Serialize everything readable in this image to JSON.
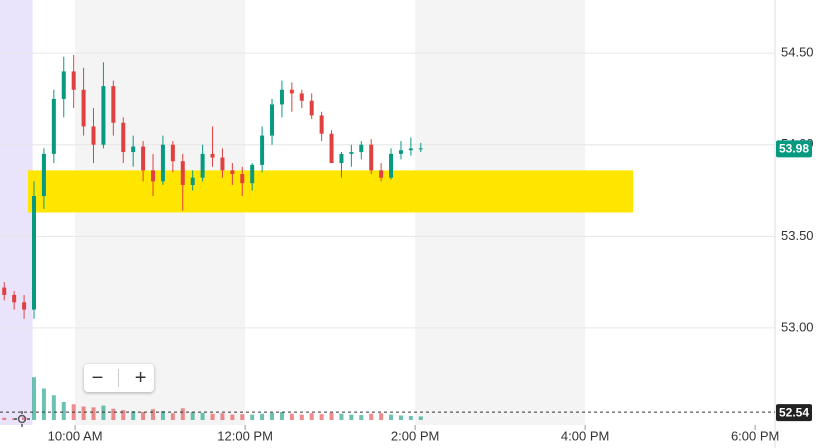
{
  "chart_data": {
    "type": "candlestick",
    "xlim": [
      547,
      1094
    ],
    "ylim": [
      52.47,
      54.79
    ],
    "xticks": [
      {
        "value": 600,
        "label": "10:00 AM"
      },
      {
        "value": 720,
        "label": "12:00 PM"
      },
      {
        "value": 840,
        "label": "2:00 PM"
      },
      {
        "value": 960,
        "label": "4:00 PM"
      },
      {
        "value": 1080,
        "label": "6:00 PM"
      }
    ],
    "yticks": [
      {
        "value": 53,
        "label": "53.00"
      },
      {
        "value": 53.5,
        "label": "53.50"
      },
      {
        "value": 54,
        "label": "54.00"
      },
      {
        "value": 54.5,
        "label": "54.50"
      }
    ],
    "grid": true,
    "up_color": "#089981",
    "down_color": "#e0403f",
    "premarket": [
      547,
      570
    ],
    "shaded": [
      [
        600,
        720
      ],
      [
        840,
        960
      ]
    ],
    "x": [
      550,
      557,
      564,
      571,
      578,
      585,
      592,
      599,
      606,
      613,
      620,
      627,
      634,
      641,
      648,
      655,
      662,
      669,
      676,
      683,
      690,
      697,
      704,
      711,
      718,
      725,
      732,
      739,
      746,
      753,
      760,
      767,
      774,
      781,
      788,
      795,
      802,
      809,
      816,
      823,
      830,
      837,
      844
    ],
    "open": [
      53.22,
      53.18,
      53.14,
      53.1,
      53.72,
      53.95,
      54.25,
      54.4,
      54.3,
      54.1,
      54.0,
      54.32,
      54.12,
      53.96,
      53.99,
      53.86,
      53.8,
      54.0,
      53.91,
      53.78,
      53.82,
      53.95,
      53.93,
      53.86,
      53.84,
      53.79,
      53.89,
      54.05,
      54.22,
      54.3,
      54.28,
      54.24,
      54.16,
      54.06,
      53.9,
      53.95,
      53.96,
      54.0,
      53.86,
      53.82,
      53.95,
      53.97,
      53.98
    ],
    "high": [
      53.25,
      53.2,
      53.18,
      53.8,
      53.98,
      54.3,
      54.48,
      54.49,
      54.42,
      54.2,
      54.45,
      54.35,
      54.15,
      54.05,
      54.02,
      53.95,
      54.05,
      54.02,
      53.95,
      53.86,
      54.0,
      54.1,
      53.98,
      53.9,
      53.88,
      53.9,
      54.1,
      54.25,
      54.35,
      54.34,
      54.3,
      54.28,
      54.18,
      54.08,
      53.96,
      54.0,
      54.02,
      54.03,
      53.9,
      53.98,
      54.02,
      54.04,
      54.01
    ],
    "low": [
      53.15,
      53.1,
      53.05,
      53.05,
      53.65,
      53.9,
      54.15,
      54.2,
      54.05,
      53.9,
      53.98,
      54.05,
      53.9,
      53.88,
      53.8,
      53.72,
      53.78,
      53.85,
      53.64,
      53.75,
      53.8,
      53.88,
      53.82,
      53.78,
      53.72,
      53.75,
      53.85,
      54.0,
      54.15,
      54.18,
      54.2,
      54.14,
      54.02,
      53.9,
      53.82,
      53.88,
      53.92,
      53.84,
      53.8,
      53.81,
      53.92,
      53.94,
      53.96
    ],
    "close": [
      53.18,
      53.14,
      53.1,
      53.72,
      53.95,
      54.25,
      54.4,
      54.3,
      54.1,
      54.0,
      54.32,
      54.12,
      53.96,
      53.99,
      53.86,
      53.8,
      54.0,
      53.91,
      53.78,
      53.82,
      53.95,
      53.93,
      53.86,
      53.84,
      53.79,
      53.89,
      54.05,
      54.22,
      54.3,
      54.28,
      54.24,
      54.16,
      54.06,
      53.9,
      53.95,
      53.96,
      54.0,
      53.86,
      53.82,
      53.95,
      53.97,
      53.98,
      53.98
    ],
    "volume": [
      5,
      4,
      6,
      95,
      70,
      55,
      40,
      35,
      30,
      28,
      32,
      25,
      22,
      20,
      18,
      24,
      20,
      15,
      26,
      18,
      16,
      14,
      15,
      12,
      13,
      12,
      14,
      16,
      18,
      14,
      12,
      15,
      13,
      16,
      14,
      12,
      11,
      14,
      15,
      12,
      10,
      9,
      8
    ],
    "vlim": [
      0,
      200
    ],
    "highlight": {
      "from": 53.63,
      "to": 53.86,
      "color": "#ffe600"
    },
    "prev_close": {
      "value": 52.54,
      "label": "52.54"
    },
    "last_price": {
      "value": 53.98,
      "label": "53.98"
    }
  }
}
